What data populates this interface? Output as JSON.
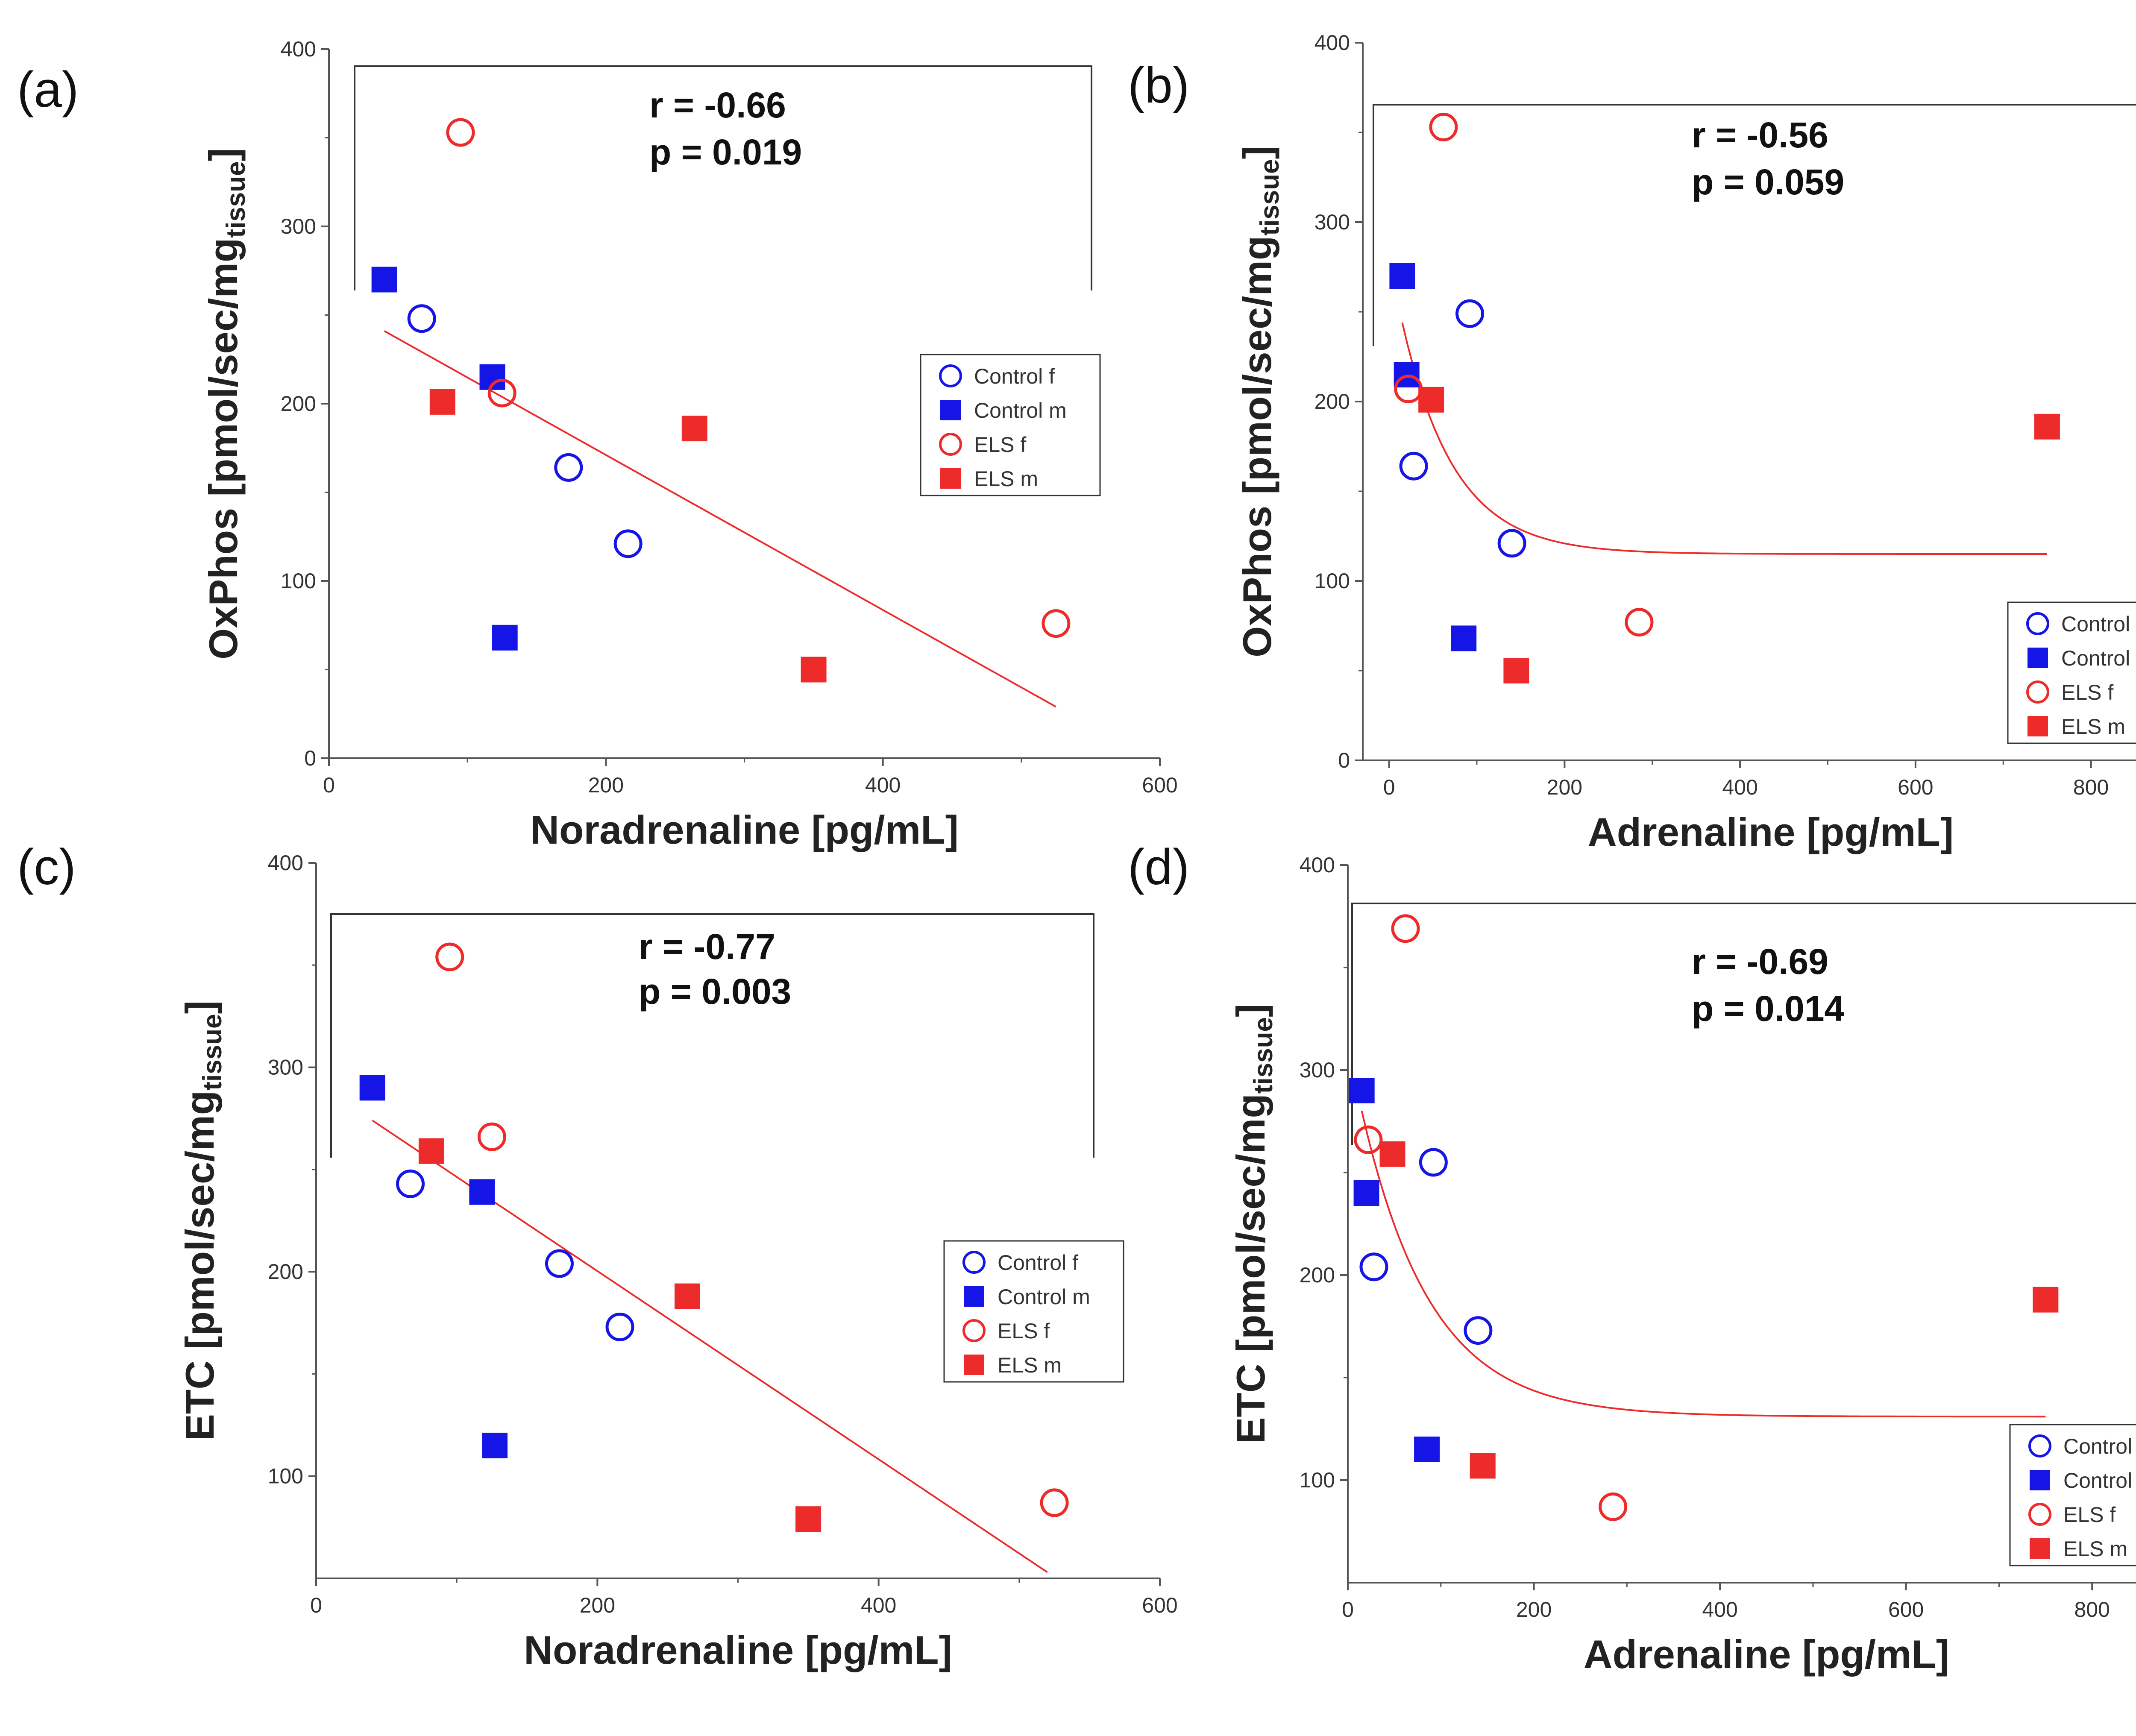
{
  "colors": {
    "control": "#1515e8",
    "els": "#ee2b2b",
    "fit": "#ee2b2b",
    "axis": "#555555",
    "background": "#ffffff"
  },
  "legend": {
    "placement": "lower-right",
    "entries": [
      "Control f",
      "Control m",
      "ELS f",
      "ELS m"
    ]
  },
  "chart_data": [
    {
      "panel": "(a)",
      "type": "scatter",
      "xlabel": "Noradrenaline [pg/mL]",
      "ylabel_main": "OxPhos [pmol/sec/mg",
      "ylabel_sub": "tissue",
      "ylabel_close": "]",
      "xlim": [
        0,
        600
      ],
      "ylim": [
        0,
        400
      ],
      "xticks": [
        0,
        200,
        400,
        600
      ],
      "yticks": [
        0,
        100,
        200,
        300,
        400
      ],
      "stats_r": "r = -0.66",
      "stats_p": "p = 0.019",
      "fit": {
        "type": "linear",
        "x": [
          40,
          525
        ],
        "y": [
          241,
          29
        ]
      },
      "series": [
        {
          "name": "Control f",
          "marker": "open-circle",
          "color": "control",
          "points": [
            [
              67,
              248
            ],
            [
              173,
              164
            ],
            [
              216,
              121
            ]
          ]
        },
        {
          "name": "Control m",
          "marker": "filled-square",
          "color": "control",
          "points": [
            [
              40,
              270
            ],
            [
              118,
              215
            ],
            [
              127,
              68
            ]
          ]
        },
        {
          "name": "ELS f",
          "marker": "open-circle",
          "color": "els",
          "points": [
            [
              95,
              353
            ],
            [
              125,
              206
            ],
            [
              525,
              76
            ]
          ]
        },
        {
          "name": "ELS m",
          "marker": "filled-square",
          "color": "els",
          "points": [
            [
              82,
              201
            ],
            [
              264,
              186
            ],
            [
              350,
              50
            ]
          ]
        }
      ]
    },
    {
      "panel": "(b)",
      "type": "scatter",
      "xlabel": "Adrenaline [pg/mL]",
      "ylabel_main": "OxPhos [pmol/sec/mg",
      "ylabel_sub": "tissue",
      "ylabel_close": "]",
      "xlim": [
        -30,
        900
      ],
      "ylim": [
        0,
        400
      ],
      "xticks": [
        0,
        200,
        400,
        600,
        800
      ],
      "yticks": [
        0,
        100,
        200,
        300,
        400
      ],
      "stats_r": "r = -0.56",
      "stats_p": "p = 0.059",
      "fit": {
        "type": "exponential-decay",
        "x0": 15,
        "x1": 750,
        "y0": 244,
        "plateau": 115,
        "tau": 60
      },
      "series": [
        {
          "name": "Control f",
          "marker": "open-circle",
          "color": "control",
          "points": [
            [
              92,
              249
            ],
            [
              28,
              164
            ],
            [
              140,
              121
            ]
          ]
        },
        {
          "name": "Control m",
          "marker": "filled-square",
          "color": "control",
          "points": [
            [
              15,
              270
            ],
            [
              20,
              215
            ],
            [
              85,
              68
            ]
          ]
        },
        {
          "name": "ELS f",
          "marker": "open-circle",
          "color": "els",
          "points": [
            [
              62,
              353
            ],
            [
              22,
              207
            ],
            [
              285,
              77
            ]
          ]
        },
        {
          "name": "ELS m",
          "marker": "filled-square",
          "color": "els",
          "points": [
            [
              48,
              201
            ],
            [
              750,
              186
            ],
            [
              145,
              50
            ]
          ]
        }
      ]
    },
    {
      "panel": "(c)",
      "type": "scatter",
      "xlabel": "Noradrenaline [pg/mL]",
      "ylabel_main": "ETC [pmol/sec/mg",
      "ylabel_sub": "tissue",
      "ylabel_close": "]",
      "xlim": [
        0,
        600
      ],
      "ylim": [
        50,
        400
      ],
      "xticks": [
        0,
        200,
        400,
        600
      ],
      "yticks": [
        100,
        200,
        300,
        400
      ],
      "stats_r": "r = -0.77",
      "stats_p": "p = 0.003",
      "fit": {
        "type": "linear",
        "x": [
          40,
          520
        ],
        "y": [
          274,
          53
        ]
      },
      "series": [
        {
          "name": "Control f",
          "marker": "open-circle",
          "color": "control",
          "points": [
            [
              67,
              243
            ],
            [
              173,
              204
            ],
            [
              216,
              173
            ]
          ]
        },
        {
          "name": "Control m",
          "marker": "filled-square",
          "color": "control",
          "points": [
            [
              40,
              290
            ],
            [
              118,
              239
            ],
            [
              127,
              115
            ]
          ]
        },
        {
          "name": "ELS f",
          "marker": "open-circle",
          "color": "els",
          "points": [
            [
              95,
              354
            ],
            [
              125,
              266
            ],
            [
              525,
              87
            ]
          ]
        },
        {
          "name": "ELS m",
          "marker": "filled-square",
          "color": "els",
          "points": [
            [
              82,
              259
            ],
            [
              264,
              188
            ],
            [
              350,
              79
            ]
          ]
        }
      ]
    },
    {
      "panel": "(d)",
      "type": "scatter",
      "xlabel": "Adrenaline [pg/mL]",
      "ylabel_main": "ETC [pmol/sec/mg",
      "ylabel_sub": "tissue",
      "ylabel_close": "]",
      "xlim": [
        0,
        900
      ],
      "ylim": [
        50,
        400
      ],
      "xticks": [
        0,
        200,
        400,
        600,
        800
      ],
      "yticks": [
        100,
        200,
        300,
        400
      ],
      "stats_r": "r = -0.69",
      "stats_p": "p = 0.014",
      "fit": {
        "type": "exponential-decay",
        "x0": 15,
        "x1": 750,
        "y0": 280,
        "plateau": 131,
        "tau": 75
      },
      "series": [
        {
          "name": "Control f",
          "marker": "open-circle",
          "color": "control",
          "points": [
            [
              92,
              255
            ],
            [
              28,
              204
            ],
            [
              140,
              173
            ]
          ]
        },
        {
          "name": "Control m",
          "marker": "filled-square",
          "color": "control",
          "points": [
            [
              15,
              290
            ],
            [
              20,
              240
            ],
            [
              85,
              115
            ]
          ]
        },
        {
          "name": "ELS f",
          "marker": "open-circle",
          "color": "els",
          "points": [
            [
              62,
              369
            ],
            [
              22,
              266
            ],
            [
              285,
              87
            ]
          ]
        },
        {
          "name": "ELS m",
          "marker": "filled-square",
          "color": "els",
          "points": [
            [
              48,
              259
            ],
            [
              750,
              188
            ],
            [
              145,
              107
            ]
          ]
        }
      ]
    }
  ]
}
